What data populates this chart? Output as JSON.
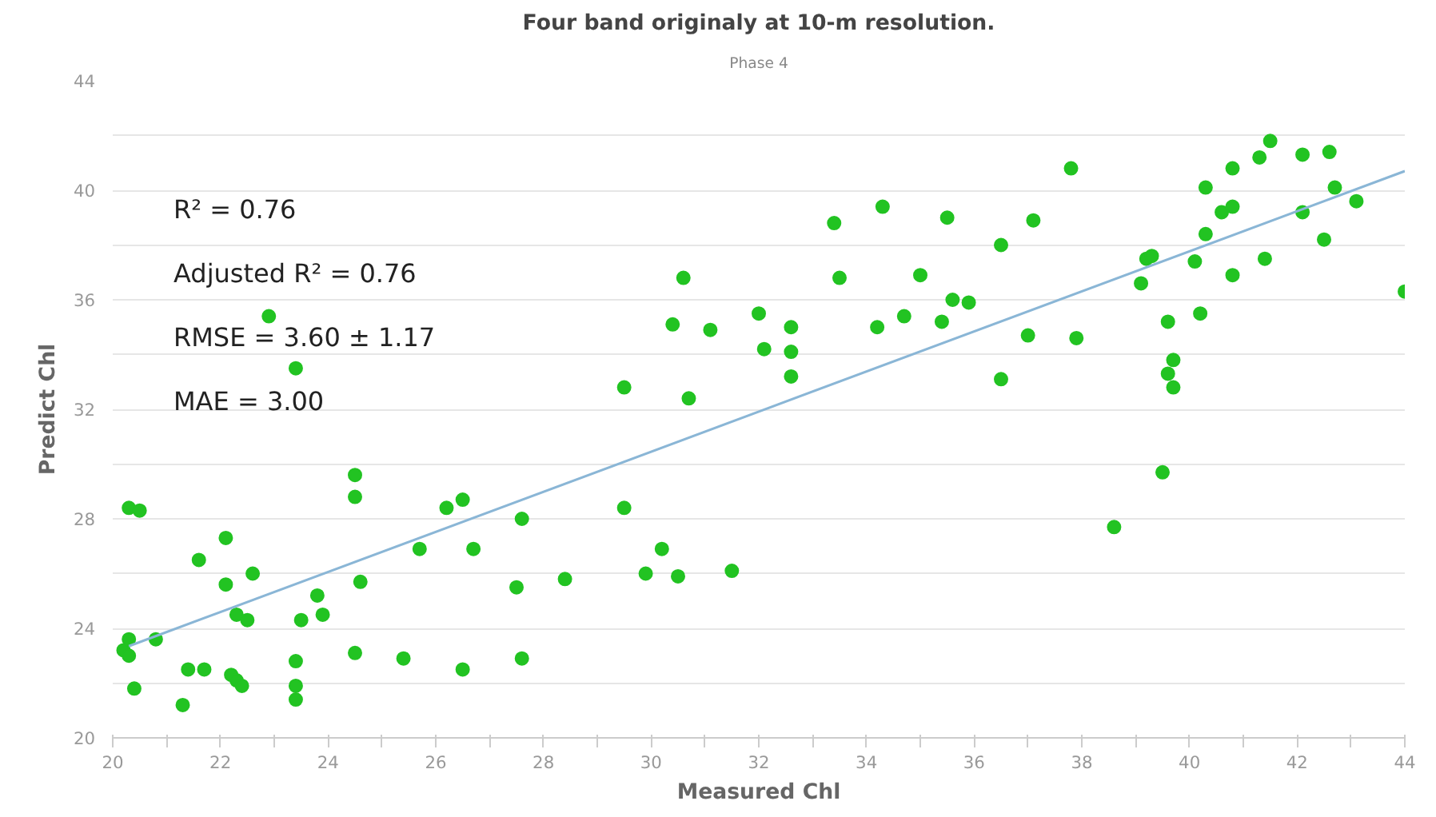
{
  "chart_data": {
    "type": "scatter",
    "title": "Four band originaly at 10-m resolution.",
    "subtitle": "Phase 4",
    "xlabel": "Measured Chl",
    "ylabel": "Predict Chl",
    "annotations": [
      "R² = 0.76",
      "Adjusted R² = 0.76",
      "RMSE = 3.60 ± 1.17",
      "MAE = 3.00"
    ],
    "xlim": [
      20,
      44
    ],
    "ylim": [
      20,
      44
    ],
    "xticks": [
      20,
      {
        "value": 21,
        "label": null
      },
      22,
      {
        "value": 23,
        "label": null
      },
      24,
      {
        "value": 25,
        "label": null
      },
      26,
      {
        "value": 27,
        "label": null
      },
      28,
      {
        "value": 29,
        "label": null
      },
      30,
      {
        "value": 31,
        "label": null
      },
      32,
      {
        "value": 33,
        "label": null
      },
      34,
      {
        "value": 35,
        "label": null
      },
      36,
      {
        "value": 37,
        "label": null
      },
      38,
      {
        "value": 39,
        "label": null
      },
      40,
      {
        "value": 41,
        "label": null
      },
      42,
      {
        "value": 43,
        "label": null
      },
      44
    ],
    "yticks": [
      20,
      {
        "value": 22,
        "label": null
      },
      24,
      {
        "value": 26,
        "label": null
      },
      28,
      {
        "value": 30,
        "label": null
      },
      32,
      {
        "value": 34,
        "label": null
      },
      36,
      {
        "value": 38,
        "label": null
      },
      40,
      {
        "value": 42,
        "label": null
      },
      44
    ],
    "grid": "y",
    "series": [
      {
        "marker": "circle",
        "color": "#22c322",
        "x": [
          20.2,
          20.3,
          20.3,
          20.3,
          20.5,
          20.4,
          20.8,
          21.3,
          21.4,
          21.6,
          21.7,
          22.1,
          22.1,
          22.2,
          22.3,
          22.3,
          22.4,
          22.5,
          22.6,
          22.9,
          23.4,
          23.4,
          23.4,
          23.4,
          23.5,
          23.8,
          23.9,
          24.5,
          24.5,
          24.5,
          24.6,
          25.4,
          25.7,
          26.2,
          26.5,
          26.5,
          26.7,
          27.5,
          27.6,
          27.6,
          28.4,
          29.5,
          29.5,
          29.9,
          30.2,
          30.5,
          30.7,
          30.4,
          30.6,
          31.1,
          31.5,
          32.0,
          32.1,
          32.6,
          32.6,
          32.6,
          33.4,
          33.5,
          34.2,
          34.3,
          34.7,
          35.0,
          35.4,
          35.5,
          35.6,
          35.9,
          36.5,
          36.5,
          37.0,
          37.1,
          37.8,
          37.9,
          38.6,
          39.1,
          39.2,
          39.3,
          39.5,
          39.6,
          39.6,
          39.7,
          39.7,
          40.1,
          40.2,
          40.3,
          40.3,
          40.6,
          40.8,
          40.8,
          40.8,
          41.3,
          41.4,
          41.5,
          42.1,
          42.1,
          42.5,
          42.6,
          42.7,
          43.1,
          44.0
        ],
        "values": [
          23.2,
          23.0,
          23.6,
          28.4,
          28.3,
          21.8,
          23.6,
          21.2,
          22.5,
          26.5,
          22.5,
          27.3,
          25.6,
          22.3,
          24.5,
          22.1,
          21.9,
          24.3,
          26.0,
          35.4,
          33.5,
          22.8,
          21.9,
          21.4,
          24.3,
          25.2,
          24.5,
          29.6,
          28.8,
          23.1,
          25.7,
          22.9,
          26.9,
          28.4,
          28.7,
          22.5,
          26.9,
          25.5,
          28.0,
          22.9,
          25.8,
          28.4,
          32.8,
          26.0,
          26.9,
          25.9,
          32.4,
          35.1,
          36.8,
          34.9,
          26.1,
          35.5,
          34.2,
          35.0,
          34.1,
          33.2,
          38.8,
          36.8,
          35.0,
          39.4,
          35.4,
          36.9,
          35.2,
          39.0,
          36.0,
          35.9,
          38.0,
          33.1,
          34.7,
          38.9,
          40.8,
          34.6,
          27.7,
          36.6,
          37.5,
          37.6,
          29.7,
          35.2,
          33.3,
          33.8,
          32.8,
          37.4,
          35.5,
          38.4,
          40.1,
          39.2,
          39.4,
          36.9,
          40.8,
          41.2,
          37.5,
          41.8,
          39.2,
          41.3,
          38.2,
          41.4,
          40.1,
          39.6,
          36.3
        ]
      },
      {
        "type": "line",
        "color": "#8ab6d6",
        "x": [
          20.3,
          44.0
        ],
        "values": [
          23.35,
          40.7
        ]
      }
    ]
  }
}
